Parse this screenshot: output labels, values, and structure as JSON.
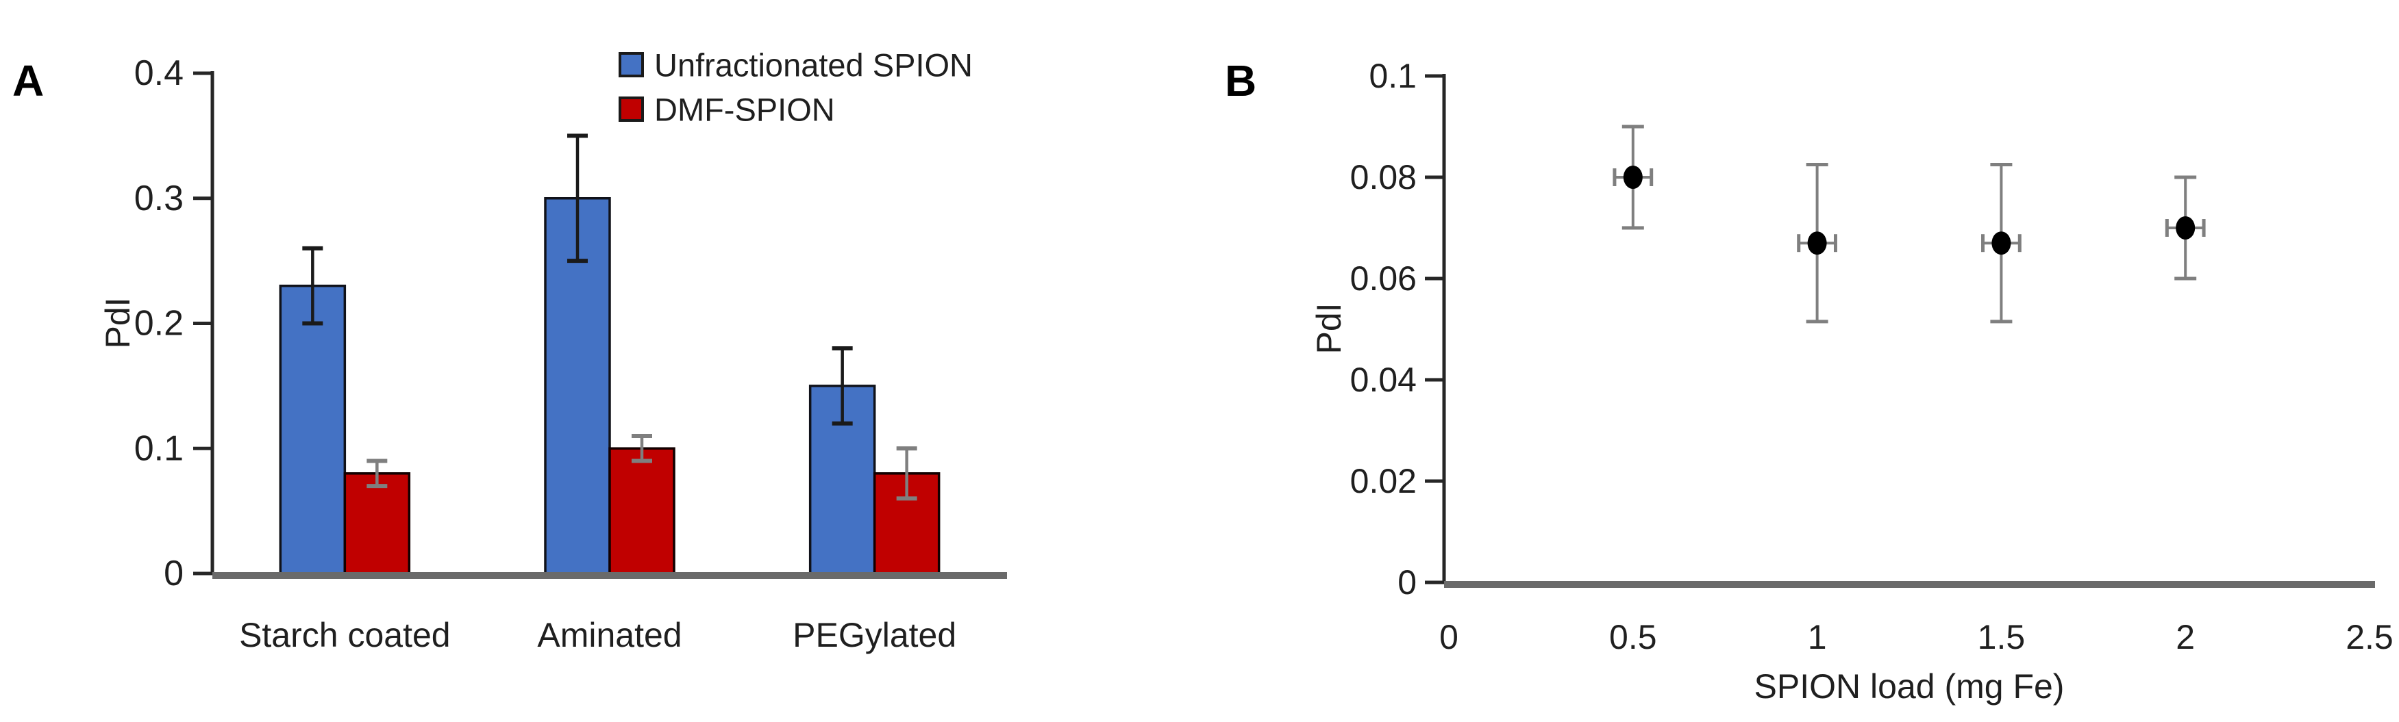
{
  "figure": {
    "background": "#ffffff"
  },
  "chart_data": [
    {
      "panel": "A",
      "type": "bar",
      "title": "",
      "ylabel": "PdI",
      "xlabel": "",
      "categories": [
        "Starch coated",
        "Aminated",
        "PEGylated"
      ],
      "series": [
        {
          "name": "Unfractionated SPION",
          "color": "#4472C4",
          "border_color": "#10121a",
          "error_color": "#1a1a1a",
          "values": [
            0.23,
            0.3,
            0.15
          ],
          "errors": [
            0.03,
            0.05,
            0.03
          ]
        },
        {
          "name": "DMF-SPION",
          "color": "#C00000",
          "border_color": "#120000",
          "error_color": "#7f7f7f",
          "values": [
            0.08,
            0.1,
            0.08
          ],
          "errors": [
            0.01,
            0.01,
            0.02
          ]
        }
      ],
      "ylim": [
        0,
        0.4
      ],
      "yticks": [
        0,
        0.1,
        0.2,
        0.3,
        0.4
      ],
      "ytick_labels": [
        "0",
        "0.1",
        "0.2",
        "0.3",
        "0.4"
      ],
      "grid": false,
      "legend_position": "top-right"
    },
    {
      "panel": "B",
      "type": "scatter",
      "title": "",
      "xlabel": "SPION load (mg Fe)",
      "ylabel": "PdI",
      "x": [
        0.5,
        1,
        1.5,
        2
      ],
      "y": [
        0.08,
        0.067,
        0.067,
        0.07
      ],
      "yerr": [
        0.01,
        0.0155,
        0.0155,
        0.01
      ],
      "xerr": [
        0.05,
        0.05,
        0.05,
        0.05
      ],
      "xlim": [
        0,
        2.5
      ],
      "ylim": [
        0,
        0.1
      ],
      "xticks": [
        0,
        0.5,
        1,
        1.5,
        2,
        2.5
      ],
      "xtick_labels": [
        "0",
        "0.5",
        "1",
        "1.5",
        "2",
        "2.5"
      ],
      "yticks": [
        0,
        0.02,
        0.04,
        0.06,
        0.08,
        0.1
      ],
      "ytick_labels": [
        "0",
        "0.02",
        "0.04",
        "0.06",
        "0.08",
        "0.1"
      ],
      "marker_color": "#000000",
      "error_color": "#7f7f7f",
      "grid": false,
      "legend_position": "none"
    }
  ],
  "theme": {
    "axis_color": "#262626",
    "baseline_color": "#6a6a6a",
    "text_color": "#1f1f1f"
  }
}
